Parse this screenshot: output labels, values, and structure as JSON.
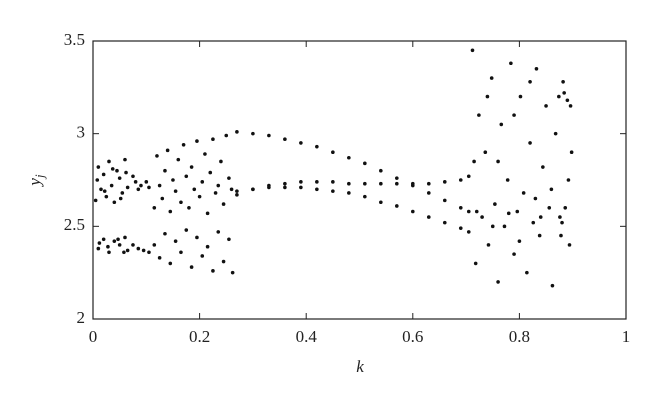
{
  "chart_data": {
    "type": "scatter",
    "xlabel": "k",
    "ylabel": "y",
    "ylabel_sub": "j",
    "xlim": [
      0,
      1
    ],
    "xticks": [
      0,
      0.2,
      0.4,
      0.6,
      0.8,
      1
    ],
    "ylim": [
      2,
      3.5
    ],
    "yticks": [
      2,
      2.5,
      3,
      3.5
    ],
    "grid": false,
    "color": "#111111",
    "x": [
      0.005,
      0.01,
      0.015,
      0.02,
      0.025,
      0.03,
      0.035,
      0.04,
      0.045,
      0.05,
      0.055,
      0.06,
      0.065,
      0.01,
      0.02,
      0.03,
      0.04,
      0.05,
      0.06,
      0.065,
      0.008,
      0.022,
      0.037,
      0.052,
      0.062,
      0.012,
      0.028,
      0.047,
      0.058,
      0.075,
      0.08,
      0.085,
      0.09,
      0.1,
      0.105,
      0.075,
      0.085,
      0.095,
      0.105,
      0.115,
      0.12,
      0.125,
      0.13,
      0.135,
      0.14,
      0.145,
      0.15,
      0.155,
      0.16,
      0.165,
      0.17,
      0.175,
      0.18,
      0.185,
      0.19,
      0.195,
      0.2,
      0.205,
      0.21,
      0.215,
      0.22,
      0.225,
      0.23,
      0.235,
      0.24,
      0.245,
      0.25,
      0.255,
      0.26,
      0.115,
      0.125,
      0.135,
      0.145,
      0.155,
      0.165,
      0.175,
      0.185,
      0.195,
      0.205,
      0.215,
      0.225,
      0.235,
      0.245,
      0.255,
      0.262,
      0.27,
      0.3,
      0.33,
      0.36,
      0.39,
      0.42,
      0.45,
      0.48,
      0.51,
      0.54,
      0.57,
      0.6,
      0.63,
      0.66,
      0.69,
      0.705,
      0.27,
      0.3,
      0.33,
      0.36,
      0.39,
      0.42,
      0.45,
      0.48,
      0.51,
      0.54,
      0.57,
      0.6,
      0.63,
      0.66,
      0.69,
      0.705,
      0.27,
      0.3,
      0.33,
      0.36,
      0.39,
      0.42,
      0.45,
      0.48,
      0.51,
      0.54,
      0.57,
      0.6,
      0.63,
      0.66,
      0.69,
      0.705,
      0.712,
      0.718,
      0.724,
      0.73,
      0.736,
      0.742,
      0.748,
      0.754,
      0.76,
      0.766,
      0.772,
      0.778,
      0.784,
      0.79,
      0.796,
      0.802,
      0.808,
      0.814,
      0.82,
      0.826,
      0.832,
      0.838,
      0.844,
      0.85,
      0.856,
      0.862,
      0.868,
      0.72,
      0.74,
      0.76,
      0.78,
      0.8,
      0.82,
      0.84,
      0.86,
      0.715,
      0.75,
      0.79,
      0.83,
      0.874,
      0.878,
      0.882,
      0.886,
      0.89,
      0.894,
      0.898,
      0.876,
      0.884,
      0.892,
      0.896,
      0.88
    ],
    "values": [
      2.64,
      2.82,
      2.7,
      2.78,
      2.66,
      2.85,
      2.72,
      2.63,
      2.8,
      2.76,
      2.68,
      2.86,
      2.71,
      2.38,
      2.43,
      2.36,
      2.42,
      2.4,
      2.44,
      2.37,
      2.75,
      2.69,
      2.81,
      2.65,
      2.79,
      2.41,
      2.39,
      2.43,
      2.36,
      2.77,
      2.74,
      2.7,
      2.72,
      2.74,
      2.71,
      2.4,
      2.38,
      2.37,
      2.36,
      2.6,
      2.88,
      2.72,
      2.65,
      2.8,
      2.91,
      2.58,
      2.75,
      2.69,
      2.86,
      2.63,
      2.94,
      2.77,
      2.6,
      2.82,
      2.7,
      2.96,
      2.66,
      2.74,
      2.89,
      2.57,
      2.79,
      2.97,
      2.68,
      2.72,
      2.85,
      2.62,
      2.99,
      2.76,
      2.7,
      2.4,
      2.33,
      2.46,
      2.3,
      2.42,
      2.36,
      2.48,
      2.28,
      2.44,
      2.34,
      2.39,
      2.26,
      2.47,
      2.31,
      2.43,
      2.25,
      3.01,
      3.0,
      2.99,
      2.97,
      2.95,
      2.93,
      2.9,
      2.87,
      2.84,
      2.8,
      2.76,
      2.72,
      2.68,
      2.64,
      2.6,
      2.58,
      2.67,
      2.7,
      2.72,
      2.73,
      2.74,
      2.74,
      2.74,
      2.73,
      2.73,
      2.73,
      2.73,
      2.73,
      2.73,
      2.74,
      2.75,
      2.77,
      2.69,
      2.7,
      2.71,
      2.71,
      2.71,
      2.7,
      2.69,
      2.68,
      2.66,
      2.63,
      2.61,
      2.58,
      2.55,
      2.52,
      2.49,
      2.47,
      3.45,
      2.3,
      3.1,
      2.55,
      2.9,
      2.4,
      3.3,
      2.62,
      2.2,
      3.05,
      2.5,
      2.75,
      3.38,
      2.35,
      2.58,
      3.2,
      2.68,
      2.25,
      2.95,
      2.52,
      3.35,
      2.45,
      2.82,
      3.15,
      2.6,
      2.18,
      3.0,
      2.58,
      3.2,
      2.85,
      2.57,
      2.42,
      3.28,
      2.55,
      2.7,
      2.85,
      2.5,
      3.1,
      2.65,
      3.2,
      2.45,
      3.28,
      2.6,
      3.18,
      2.4,
      2.9,
      2.55,
      3.22,
      2.75,
      3.15,
      2.52
    ]
  }
}
